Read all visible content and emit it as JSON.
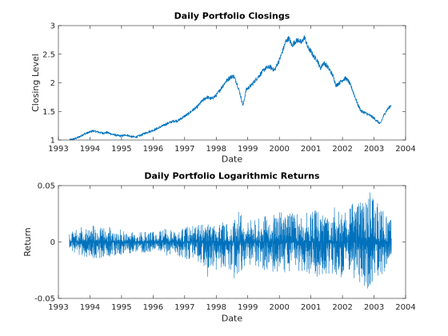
{
  "chart_data": [
    {
      "type": "line",
      "title": "Daily Portfolio Closings",
      "xlabel": "Date",
      "ylabel": "Closing Level",
      "xlim": [
        1993,
        2004
      ],
      "ylim": [
        1,
        3
      ],
      "xticks": [
        "1993",
        "1994",
        "1995",
        "1996",
        "1997",
        "1998",
        "1999",
        "2000",
        "2001",
        "2002",
        "2003",
        "2004"
      ],
      "yticks": [
        "1",
        "1.5",
        "2",
        "2.5",
        "3"
      ],
      "grid": false,
      "color": "#0072BD",
      "series": [
        {
          "x": [
            1993.35,
            1993.5,
            1993.65,
            1993.8,
            1993.95,
            1994.1,
            1994.25,
            1994.4,
            1994.55,
            1994.7,
            1994.85,
            1995.0,
            1995.15,
            1995.3,
            1995.45,
            1995.6,
            1995.75,
            1995.9,
            1996.05,
            1996.2,
            1996.35,
            1996.5,
            1996.65,
            1996.8,
            1996.95,
            1997.1,
            1997.25,
            1997.4,
            1997.55,
            1997.7,
            1997.85,
            1998.0,
            1998.15,
            1998.3,
            1998.45,
            1998.55,
            1998.65,
            1998.75,
            1998.85,
            1998.95,
            1999.1,
            1999.25,
            1999.4,
            1999.55,
            1999.7,
            1999.85,
            2000.0,
            2000.1,
            2000.2,
            2000.3,
            2000.4,
            2000.5,
            2000.6,
            2000.7,
            2000.8,
            2000.9,
            2001.0,
            2001.1,
            2001.2,
            2001.3,
            2001.4,
            2001.5,
            2001.6,
            2001.7,
            2001.8,
            2001.9,
            2002.0,
            2002.1,
            2002.2,
            2002.3,
            2002.4,
            2002.5,
            2002.6,
            2002.7,
            2002.8,
            2002.9,
            2003.0,
            2003.1,
            2003.2,
            2003.3,
            2003.4,
            2003.5,
            2003.55
          ],
          "y": [
            1.0,
            1.02,
            1.05,
            1.1,
            1.13,
            1.16,
            1.14,
            1.12,
            1.13,
            1.1,
            1.08,
            1.07,
            1.09,
            1.06,
            1.05,
            1.08,
            1.12,
            1.15,
            1.18,
            1.22,
            1.26,
            1.3,
            1.33,
            1.34,
            1.4,
            1.45,
            1.52,
            1.58,
            1.68,
            1.75,
            1.72,
            1.78,
            1.9,
            2.02,
            2.1,
            2.12,
            2.0,
            1.82,
            1.6,
            1.88,
            1.95,
            2.05,
            2.15,
            2.25,
            2.28,
            2.22,
            2.4,
            2.55,
            2.72,
            2.78,
            2.65,
            2.72,
            2.75,
            2.7,
            2.8,
            2.62,
            2.55,
            2.45,
            2.4,
            2.25,
            2.35,
            2.3,
            2.22,
            2.12,
            1.95,
            2.0,
            2.05,
            2.08,
            2.02,
            1.9,
            1.75,
            1.6,
            1.5,
            1.48,
            1.45,
            1.42,
            1.38,
            1.33,
            1.28,
            1.42,
            1.52,
            1.58,
            1.62
          ]
        }
      ]
    },
    {
      "type": "line",
      "title": "Daily Portfolio Logarithmic Returns",
      "xlabel": "Date",
      "ylabel": "Return",
      "xlim": [
        1993,
        2004
      ],
      "ylim": [
        -0.05,
        0.05
      ],
      "xticks": [
        "1993",
        "1994",
        "1995",
        "1996",
        "1997",
        "1998",
        "1999",
        "2000",
        "2001",
        "2002",
        "2003",
        "2004"
      ],
      "yticks": [
        "-0.05",
        "0",
        "0.05"
      ],
      "grid": false,
      "color": "#0072BD",
      "series": [
        {
          "x": [
            1993.35,
            1993.6,
            1993.85,
            1994.1,
            1994.35,
            1994.6,
            1994.85,
            1995.1,
            1995.35,
            1995.6,
            1995.85,
            1996.1,
            1996.35,
            1996.6,
            1996.85,
            1997.1,
            1997.35,
            1997.6,
            1997.85,
            1998.1,
            1998.35,
            1998.6,
            1998.75,
            1998.85,
            1999.1,
            1999.35,
            1999.6,
            1999.85,
            2000.1,
            2000.35,
            2000.6,
            2000.85,
            2001.1,
            2001.35,
            2001.6,
            2001.85,
            2002.1,
            2002.35,
            2002.6,
            2002.75,
            2002.85,
            2003.1,
            2003.35,
            2003.55
          ],
          "y_envelope_upper": [
            0.008,
            0.012,
            0.015,
            0.016,
            0.013,
            0.014,
            0.012,
            0.011,
            0.009,
            0.009,
            0.01,
            0.01,
            0.012,
            0.011,
            0.012,
            0.014,
            0.015,
            0.017,
            0.02,
            0.018,
            0.02,
            0.025,
            0.028,
            0.02,
            0.02,
            0.022,
            0.024,
            0.025,
            0.028,
            0.027,
            0.025,
            0.026,
            0.028,
            0.03,
            0.028,
            0.034,
            0.028,
            0.035,
            0.038,
            0.046,
            0.045,
            0.035,
            0.026,
            0.022
          ],
          "y_envelope_lower": [
            -0.008,
            -0.012,
            -0.013,
            -0.016,
            -0.014,
            -0.013,
            -0.012,
            -0.011,
            -0.01,
            -0.009,
            -0.01,
            -0.01,
            -0.012,
            -0.012,
            -0.013,
            -0.016,
            -0.018,
            -0.022,
            -0.04,
            -0.022,
            -0.025,
            -0.034,
            -0.04,
            -0.022,
            -0.02,
            -0.024,
            -0.026,
            -0.028,
            -0.03,
            -0.03,
            -0.028,
            -0.03,
            -0.032,
            -0.03,
            -0.028,
            -0.033,
            -0.03,
            -0.034,
            -0.04,
            -0.042,
            -0.04,
            -0.035,
            -0.025,
            -0.012
          ]
        }
      ]
    }
  ]
}
